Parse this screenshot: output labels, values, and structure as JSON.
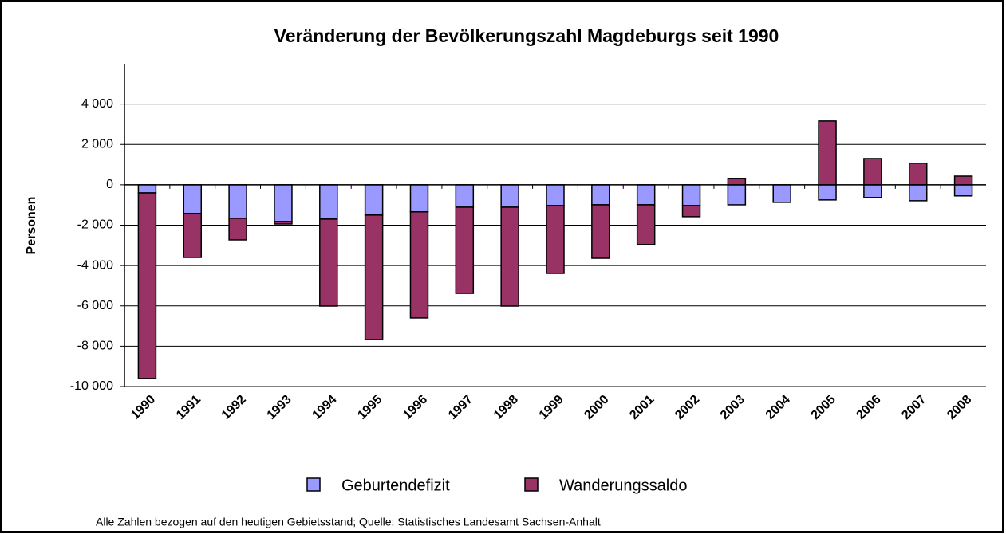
{
  "chart_data": {
    "type": "stacked_bar",
    "title": "Veränderung der Bevölkerungszahl Magdeburgs seit 1990",
    "y_label": "Personen",
    "note": "Alle Zahlen bezogen auf den heutigen Gebietsstand; Quelle: Statistisches Landesamt Sachsen-Anhalt",
    "categories": [
      "1990",
      "1991",
      "1992",
      "1993",
      "1994",
      "1995",
      "1996",
      "1997",
      "1998",
      "1999",
      "2000",
      "2001",
      "2002",
      "2003",
      "2004",
      "2005",
      "2006",
      "2007",
      "2008"
    ],
    "series": [
      {
        "name": "Geburtendefizit",
        "color": "#9999ff",
        "values": [
          -400,
          -1420,
          -1660,
          -1820,
          -1700,
          -1500,
          -1340,
          -1110,
          -1110,
          -1030,
          -990,
          -990,
          -1030,
          -990,
          -870,
          -750,
          -630,
          -790,
          -550
        ]
      },
      {
        "name": "Wanderungssaldo",
        "color": "#993366",
        "values": [
          -9200,
          -2180,
          -1070,
          -120,
          -4310,
          -6170,
          -5260,
          -4270,
          -4900,
          -3360,
          -2650,
          -1970,
          -550,
          320,
          0,
          3160,
          1300,
          1070,
          430
        ]
      }
    ],
    "ylim": [
      -10000,
      6000
    ],
    "yticks": [
      {
        "value": -10000,
        "label": "-10 000"
      },
      {
        "value": -8000,
        "label": "-8 000"
      },
      {
        "value": -6000,
        "label": "-6 000"
      },
      {
        "value": -4000,
        "label": "-4 000"
      },
      {
        "value": -2000,
        "label": "-2 000"
      },
      0,
      {
        "value": 2000,
        "label": "2 000"
      },
      {
        "value": 4000,
        "label": "4 000"
      }
    ],
    "grid": true
  }
}
